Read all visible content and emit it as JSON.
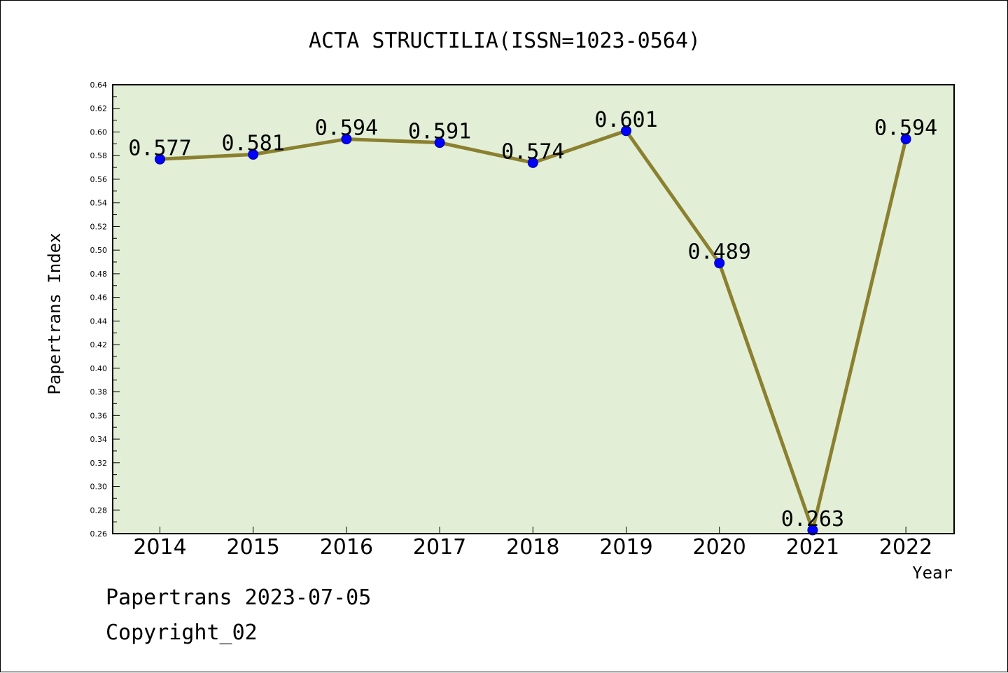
{
  "chart_data": {
    "type": "line",
    "title": "ACTA STRUCTILIA(ISSN=1023-0564)",
    "xlabel": "Year",
    "ylabel": "Papertrans Index",
    "categories": [
      "2014",
      "2015",
      "2016",
      "2017",
      "2018",
      "2019",
      "2020",
      "2021",
      "2022"
    ],
    "series": [
      {
        "values": [
          0.577,
          0.581,
          0.594,
          0.591,
          0.574,
          0.601,
          0.489,
          0.263,
          0.594
        ],
        "labels": [
          "0.577",
          "0.581",
          "0.594",
          "0.591",
          "0.574",
          "0.601",
          "0.489",
          "0.263",
          "0.594"
        ]
      }
    ],
    "ylim": [
      0.26,
      0.64
    ],
    "yticks": [
      "0.26",
      "0.28",
      "0.30",
      "0.32",
      "0.34",
      "0.36",
      "0.38",
      "0.40",
      "0.42",
      "0.44",
      "0.46",
      "0.48",
      "0.50",
      "0.52",
      "0.54",
      "0.56",
      "0.58",
      "0.60",
      "0.62",
      "0.64"
    ],
    "grid": false,
    "legend": "none",
    "colors": {
      "plot_background": "#e2efd6",
      "line": "#8b8030",
      "marker": "#0000ff"
    }
  },
  "footer": {
    "date_line": "Papertrans 2023-07-05",
    "copyright_line": "Copyright_02"
  }
}
